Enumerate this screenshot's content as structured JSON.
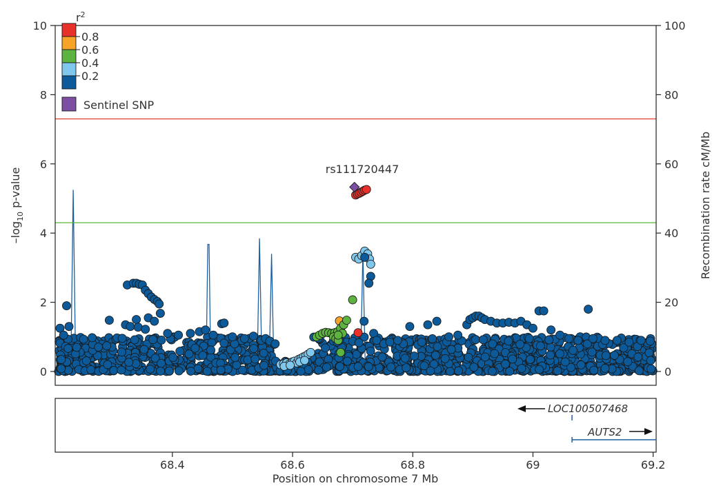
{
  "chart_data": {
    "type": "scatter",
    "xlabel": "Position on chromosome 7 Mb",
    "ylabel": "–log",
    "ylabel_sub": "10",
    "ylabel_tail": " p-value",
    "y2label": "Recombination rate cM/Mb",
    "xlim": [
      68.205,
      69.205
    ],
    "ylim": [
      -0.4,
      10
    ],
    "y2lim": [
      -4,
      100
    ],
    "x_ticks": [
      68.4,
      68.6,
      68.8,
      69.0,
      69.2
    ],
    "x_tick_labels": [
      "68.4",
      "68.6",
      "68.8",
      "69",
      "69.2"
    ],
    "y_ticks": [
      0,
      2,
      4,
      6,
      8,
      10
    ],
    "y_tick_labels": [
      "0",
      "2",
      "4",
      "6",
      "8",
      "10"
    ],
    "y2_ticks": [
      0,
      20,
      40,
      60,
      80,
      100
    ],
    "y2_tick_labels": [
      "0",
      "20",
      "40",
      "60",
      "80",
      "100"
    ],
    "grid": false,
    "thresholds": [
      {
        "y": 7.3,
        "color": "#e0392e"
      },
      {
        "y": 4.3,
        "color": "#5ab534"
      }
    ],
    "legend": {
      "position": "top-left",
      "title": "r",
      "title_sup": "2",
      "bins": [
        {
          "color": "#e8312a"
        },
        {
          "color": "#f6a327"
        },
        {
          "color": "#5db33f"
        },
        {
          "color": "#7fc7ec"
        },
        {
          "color": "#0c5a9a"
        }
      ],
      "boundaries": [
        "0.8",
        "0.6",
        "0.4",
        "0.2"
      ],
      "sentinel_label": "Sentinel SNP",
      "sentinel_color": "#7d4fa3"
    },
    "sentinel": {
      "name": "rs111720447",
      "x": 68.703,
      "y": 5.33,
      "color": "#7d4fa3"
    },
    "series": [
      {
        "r2_bin": "0.8-1.0",
        "color": "#e8312a",
        "points": [
          [
            68.705,
            5.1
          ],
          [
            68.708,
            5.13
          ],
          [
            68.711,
            5.15
          ],
          [
            68.714,
            5.18
          ],
          [
            68.717,
            5.21
          ],
          [
            68.72,
            5.24
          ],
          [
            68.723,
            5.26
          ],
          [
            68.709,
            1.12
          ]
        ]
      },
      {
        "r2_bin": "0.6-0.8",
        "color": "#f6a327",
        "points": [
          [
            68.678,
            1.46
          ]
        ]
      },
      {
        "r2_bin": "0.4-0.6",
        "color": "#5db33f",
        "points": [
          [
            68.64,
            1.0
          ],
          [
            68.645,
            1.05
          ],
          [
            68.65,
            1.1
          ],
          [
            68.655,
            1.13
          ],
          [
            68.66,
            1.12
          ],
          [
            68.665,
            1.1
          ],
          [
            68.67,
            1.12
          ],
          [
            68.675,
            1.15
          ],
          [
            68.68,
            1.25
          ],
          [
            68.685,
            1.35
          ],
          [
            68.69,
            1.48
          ],
          [
            68.7,
            2.07
          ],
          [
            68.668,
            1.0
          ],
          [
            68.672,
            0.95
          ],
          [
            68.676,
            0.9
          ],
          [
            68.68,
            0.55
          ],
          [
            68.683,
            1.1
          ],
          [
            68.676,
            1.05
          ]
        ]
      },
      {
        "r2_bin": "0.2-0.4",
        "color": "#7fc7ec",
        "points": [
          [
            68.58,
            0.2
          ],
          [
            68.585,
            0.22
          ],
          [
            68.59,
            0.25
          ],
          [
            68.595,
            0.22
          ],
          [
            68.6,
            0.28
          ],
          [
            68.603,
            0.3
          ],
          [
            68.607,
            0.25
          ],
          [
            68.61,
            0.35
          ],
          [
            68.614,
            0.38
          ],
          [
            68.618,
            0.42
          ],
          [
            68.622,
            0.45
          ],
          [
            68.626,
            0.5
          ],
          [
            68.63,
            0.55
          ],
          [
            68.705,
            3.3
          ],
          [
            68.71,
            3.25
          ],
          [
            68.715,
            3.35
          ],
          [
            68.72,
            3.48
          ],
          [
            68.725,
            3.4
          ],
          [
            68.728,
            3.25
          ],
          [
            68.73,
            3.1
          ],
          [
            68.586,
            0.15
          ],
          [
            68.596,
            0.18
          ],
          [
            68.612,
            0.28
          ],
          [
            68.62,
            0.32
          ]
        ]
      },
      {
        "r2_bin": "0.0-0.2",
        "color": "#0c5a9a",
        "points": [
          [
            68.224,
            1.9
          ],
          [
            68.213,
            1.25
          ],
          [
            68.228,
            1.3
          ],
          [
            68.219,
            1.05
          ],
          [
            68.295,
            1.48
          ],
          [
            68.325,
            2.5
          ],
          [
            68.335,
            2.55
          ],
          [
            68.34,
            2.55
          ],
          [
            68.345,
            2.52
          ],
          [
            68.35,
            2.5
          ],
          [
            68.355,
            2.35
          ],
          [
            68.36,
            2.25
          ],
          [
            68.365,
            2.15
          ],
          [
            68.37,
            2.08
          ],
          [
            68.375,
            2.02
          ],
          [
            68.378,
            1.95
          ],
          [
            68.38,
            1.68
          ],
          [
            68.36,
            1.55
          ],
          [
            68.34,
            1.5
          ],
          [
            68.37,
            1.45
          ],
          [
            68.322,
            1.35
          ],
          [
            68.33,
            1.3
          ],
          [
            68.343,
            1.28
          ],
          [
            68.355,
            1.22
          ],
          [
            68.392,
            1.1
          ],
          [
            68.41,
            1.05
          ],
          [
            68.43,
            1.1
          ],
          [
            68.445,
            1.15
          ],
          [
            68.455,
            1.2
          ],
          [
            68.468,
            1.05
          ],
          [
            68.482,
            1.38
          ],
          [
            68.486,
            1.4
          ],
          [
            68.5,
            1.0
          ],
          [
            68.52,
            0.95
          ],
          [
            68.535,
            1.02
          ],
          [
            68.548,
            0.9
          ],
          [
            68.555,
            0.95
          ],
          [
            68.562,
            0.88
          ],
          [
            68.571,
            0.8
          ],
          [
            68.72,
            3.3
          ],
          [
            68.73,
            2.75
          ],
          [
            68.727,
            2.55
          ],
          [
            68.719,
            1.45
          ],
          [
            68.735,
            1.1
          ],
          [
            68.74,
            0.9
          ],
          [
            68.752,
            0.8
          ],
          [
            68.762,
            0.85
          ],
          [
            68.775,
            0.9
          ],
          [
            68.795,
            1.3
          ],
          [
            68.815,
            0.85
          ],
          [
            68.825,
            1.35
          ],
          [
            68.84,
            1.45
          ],
          [
            68.86,
            1.0
          ],
          [
            68.875,
            1.05
          ],
          [
            68.89,
            1.35
          ],
          [
            68.895,
            1.5
          ],
          [
            68.9,
            1.55
          ],
          [
            68.905,
            1.6
          ],
          [
            68.91,
            1.6
          ],
          [
            68.915,
            1.55
          ],
          [
            68.92,
            1.5
          ],
          [
            68.93,
            1.45
          ],
          [
            68.94,
            1.4
          ],
          [
            68.95,
            1.4
          ],
          [
            68.96,
            1.42
          ],
          [
            68.97,
            1.4
          ],
          [
            68.98,
            1.45
          ],
          [
            68.99,
            1.35
          ],
          [
            69.0,
            1.25
          ],
          [
            69.01,
            1.75
          ],
          [
            69.018,
            1.75
          ],
          [
            69.03,
            1.2
          ],
          [
            69.045,
            1.05
          ],
          [
            69.06,
            0.95
          ],
          [
            69.075,
            0.9
          ],
          [
            69.092,
            1.8
          ],
          [
            69.1,
            0.95
          ],
          [
            69.12,
            0.9
          ],
          [
            69.14,
            0.9
          ],
          [
            69.16,
            0.85
          ],
          [
            69.18,
            0.9
          ],
          [
            69.195,
            0.88
          ]
        ]
      }
    ],
    "recombination_spikes": [
      {
        "x": 68.235,
        "peak": 52.5
      },
      {
        "x": 68.46,
        "peak": 49
      },
      {
        "x": 68.545,
        "peak": 38.5
      },
      {
        "x": 68.565,
        "peak": 34
      },
      {
        "x": 68.717,
        "peak": 35
      },
      {
        "x": 68.735,
        "peak": 8
      }
    ],
    "genes": [
      {
        "name": "LOC100507468",
        "strand": "-",
        "start": 69.065,
        "end": 69.065,
        "row": 1
      },
      {
        "name": "AUTS2",
        "strand": "+",
        "start": 69.065,
        "end": 69.205,
        "row": 2
      }
    ]
  }
}
